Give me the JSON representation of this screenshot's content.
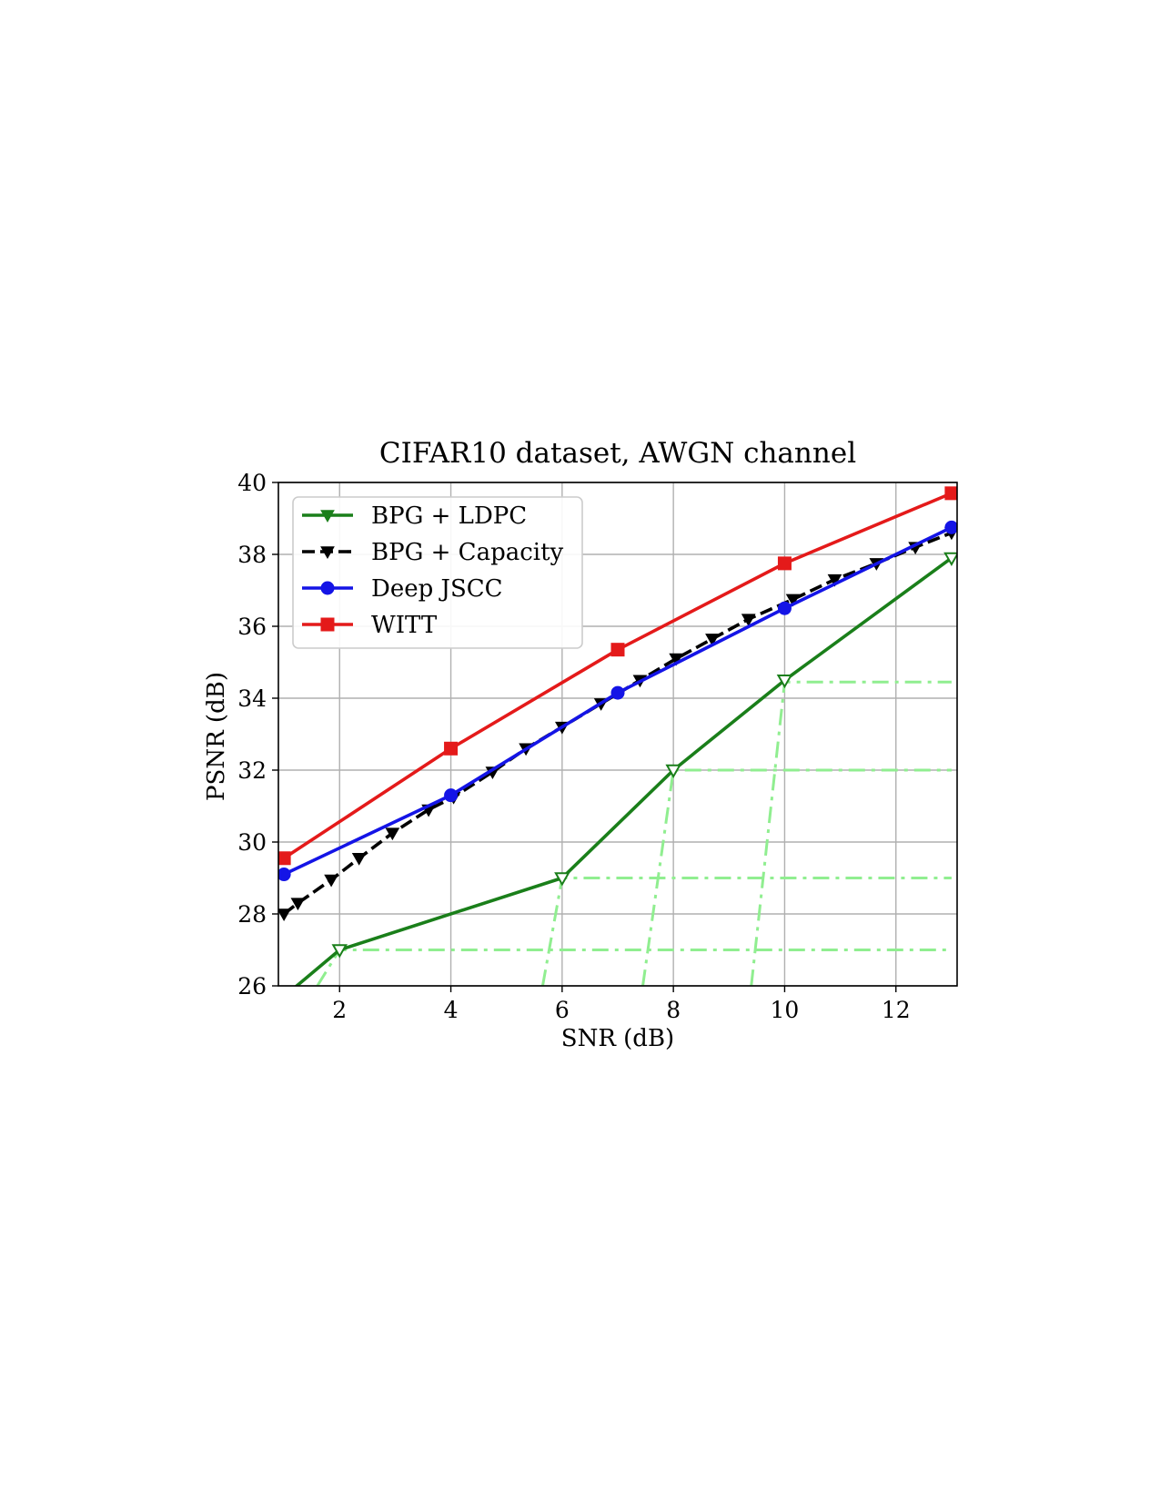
{
  "chart_data": {
    "type": "line",
    "title": "CIFAR10 dataset, AWGN channel",
    "xlabel": "SNR (dB)",
    "ylabel": "PSNR (dB)",
    "xlim": [
      0.9,
      13.1
    ],
    "ylim": [
      26,
      40
    ],
    "xticks": [
      2,
      4,
      6,
      8,
      10,
      12
    ],
    "yticks": [
      26,
      28,
      30,
      32,
      34,
      36,
      38,
      40
    ],
    "grid": true,
    "legend_position": "upper-left",
    "series": [
      {
        "name": "BPG + LDPC",
        "color": "#1a7f1a",
        "marker": "triangle-down-open",
        "linestyle": "solid",
        "x": [
          1.0,
          2,
          6,
          8,
          10,
          13
        ],
        "y": [
          25.7,
          27.0,
          29.0,
          32.0,
          34.5,
          37.9
        ]
      },
      {
        "name": "BPG + Capacity",
        "color": "#000000",
        "marker": "triangle-down",
        "linestyle": "dashed",
        "x": [
          1.0,
          1.25,
          1.85,
          2.35,
          2.95,
          3.6,
          4.05,
          4.75,
          5.35,
          6.0,
          6.7,
          7.4,
          8.05,
          8.7,
          9.35,
          10.15,
          10.9,
          11.65,
          12.35,
          13.0
        ],
        "y": [
          28.0,
          28.3,
          28.95,
          29.55,
          30.25,
          30.9,
          31.25,
          31.95,
          32.6,
          33.2,
          33.85,
          34.5,
          35.1,
          35.65,
          36.2,
          36.75,
          37.3,
          37.75,
          38.2,
          38.6
        ]
      },
      {
        "name": "Deep JSCC",
        "color": "#1414e6",
        "marker": "circle",
        "linestyle": "solid",
        "x": [
          1,
          4,
          7,
          10,
          13
        ],
        "y": [
          29.1,
          31.3,
          34.15,
          36.5,
          38.75
        ]
      },
      {
        "name": "WITT",
        "color": "#e41a1a",
        "marker": "square",
        "linestyle": "solid",
        "x": [
          1,
          4,
          7,
          10,
          13
        ],
        "y": [
          29.55,
          32.6,
          35.35,
          37.75,
          39.7
        ]
      }
    ],
    "reference_lines": {
      "color": "#90ee90",
      "linestyle": "dashdot",
      "segments": [
        {
          "x": [
            1.6,
            2.0,
            13.0
          ],
          "y": [
            26.0,
            27.0,
            27.0
          ]
        },
        {
          "x": [
            5.65,
            6.0,
            13.0
          ],
          "y": [
            26.0,
            29.0,
            29.0
          ]
        },
        {
          "x": [
            7.45,
            8.0,
            13.0
          ],
          "y": [
            26.0,
            32.0,
            32.0
          ]
        },
        {
          "x": [
            9.4,
            10.0,
            13.0
          ],
          "y": [
            26.0,
            34.45,
            34.45
          ]
        }
      ]
    }
  }
}
